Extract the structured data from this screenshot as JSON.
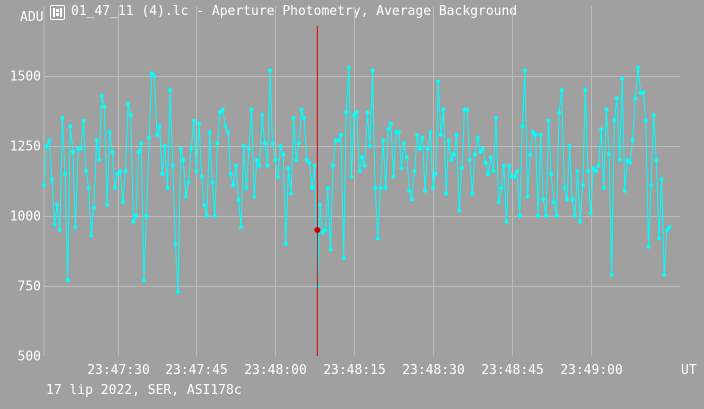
{
  "window": {
    "title": "01_47_11 (4).lc - Aperture Photometry, Average Background",
    "icon": "film-strip-icon"
  },
  "footer": {
    "text": "17 lip 2022, SER, ASI178c"
  },
  "colors": {
    "background": "#a0a0a0",
    "grid": "#bcbcbc",
    "series": "#00ffff",
    "cursor_line": "#dd0000",
    "cursor_point": "#cc0000",
    "text": "#ffffff"
  },
  "chart_data": {
    "type": "line",
    "ylabel": "ADU",
    "xlabel": "UT",
    "ylim": [
      500,
      1750
    ],
    "xlim": [
      "23:47:16",
      "23:49:17"
    ],
    "y_ticks": [
      "500",
      "750",
      "1000",
      "1250",
      "1500"
    ],
    "x_ticks": [
      "23:47:30",
      "23:47:45",
      "23:48:00",
      "23:48:15",
      "23:48:30",
      "23:48:45",
      "23:49:00"
    ],
    "grid": true,
    "cursor": {
      "time": "23:48:08",
      "value": 950
    },
    "series": [
      {
        "t0": "23:47:16",
        "dt_seconds": 0.5,
        "values": [
          1110,
          1250,
          1270,
          1130,
          970,
          1040,
          950,
          1350,
          1150,
          770,
          1320,
          1230,
          960,
          1240,
          1240,
          1340,
          1160,
          1100,
          930,
          1030,
          1270,
          1200,
          1430,
          1390,
          1040,
          1300,
          1230,
          1100,
          1150,
          1160,
          1050,
          1160,
          1400,
          1360,
          980,
          1000,
          1230,
          1260,
          770,
          1000,
          1280,
          1510,
          1500,
          1290,
          1320,
          1150,
          1250,
          1100,
          1450,
          1180,
          900,
          730,
          1240,
          1200,
          1070,
          1120,
          1240,
          1340,
          1160,
          1330,
          1140,
          1040,
          1000,
          1300,
          1120,
          1000,
          1260,
          1370,
          1380,
          1320,
          1300,
          1150,
          1110,
          1180,
          1060,
          960,
          1250,
          1100,
          1240,
          1380,
          1070,
          1200,
          1180,
          1360,
          1260,
          1180,
          1520,
          1260,
          1200,
          1140,
          1250,
          1220,
          900,
          1170,
          1080,
          1350,
          1200,
          1260,
          1380,
          1350,
          1200,
          1190,
          1100,
          1180,
          750,
          1040,
          940,
          950,
          1100,
          880,
          1180,
          1270,
          1270,
          1290,
          850,
          1370,
          1530,
          1140,
          1360,
          1370,
          1160,
          1210,
          1180,
          1370,
          1250,
          1520,
          1100,
          920,
          1100,
          1270,
          1100,
          1310,
          1330,
          1140,
          1300,
          1300,
          1170,
          1260,
          1210,
          1090,
          1060,
          1160,
          1290,
          1240,
          1280,
          1090,
          1240,
          1300,
          1100,
          1150,
          1480,
          1290,
          1380,
          1080,
          1270,
          1200,
          1220,
          1290,
          1020,
          1170,
          1380,
          1380,
          1200,
          1080,
          1220,
          1280,
          1230,
          1240,
          1190,
          1150,
          1210,
          1160,
          1350,
          1050,
          1100,
          1180,
          980,
          1180,
          1140,
          1140,
          1160,
          1000,
          1320,
          1520,
          1070,
          1220,
          1300,
          1290,
          1000,
          1290,
          1060,
          1000,
          1340,
          1150,
          1050,
          1000,
          1370,
          1450,
          1100,
          1060,
          1250,
          1060,
          1000,
          1160,
          980,
          1110,
          1450,
          1160,
          1010,
          1170,
          1160,
          1180,
          1310,
          1100,
          1380,
          1220,
          790,
          1340,
          1420,
          1200,
          1490,
          1090,
          1200,
          1190,
          1270,
          1420,
          1530,
          1440,
          1440,
          1340,
          890,
          1110,
          1360,
          1200,
          920,
          1130,
          790,
          950,
          960
        ]
      }
    ]
  }
}
